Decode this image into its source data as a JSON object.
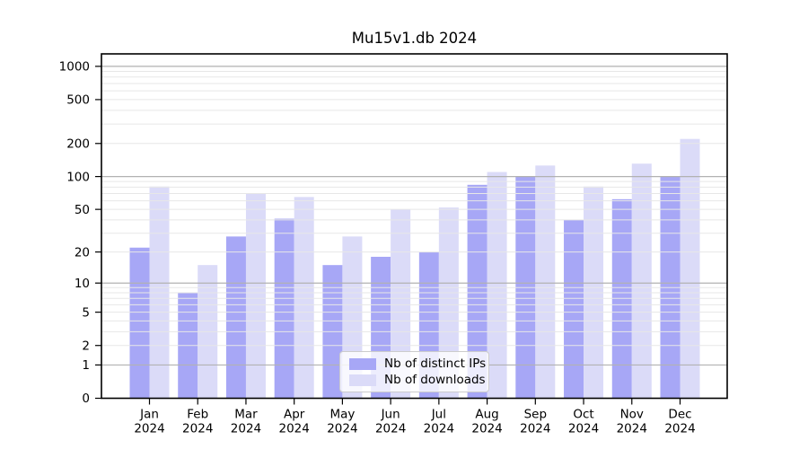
{
  "chart_data": {
    "type": "bar",
    "title": "Mu15v1.db 2024",
    "categories": [
      "Jan 2024",
      "Feb 2024",
      "Mar 2024",
      "Apr 2024",
      "May 2024",
      "Jun 2024",
      "Jul 2024",
      "Aug 2024",
      "Sep 2024",
      "Oct 2024",
      "Nov 2024",
      "Dec 2024"
    ],
    "series": [
      {
        "name": "Nb of distinct IPs",
        "color": "#a7a7f6",
        "values": [
          22,
          8,
          28,
          41,
          15,
          18,
          20,
          84,
          100,
          40,
          62,
          100
        ]
      },
      {
        "name": "Nb of downloads",
        "color": "#dbdbf8",
        "values": [
          81,
          15,
          70,
          65,
          28,
          50,
          52,
          110,
          126,
          81,
          131,
          220
        ]
      }
    ],
    "xlabel": "",
    "ylabel": "",
    "yscale": "symlog-log1p",
    "y_ticks": [
      0,
      1,
      2,
      5,
      10,
      20,
      50,
      100,
      200,
      500,
      1000
    ],
    "ylim": [
      0,
      1250
    ],
    "grid": true,
    "grid_over_bars": true,
    "legend_position": "lower center",
    "colors": {
      "major_gridline": "#b2b2b2",
      "minor_gridline": "#e7e7e7",
      "spine": "#000000",
      "tick_label": "#000000"
    }
  }
}
